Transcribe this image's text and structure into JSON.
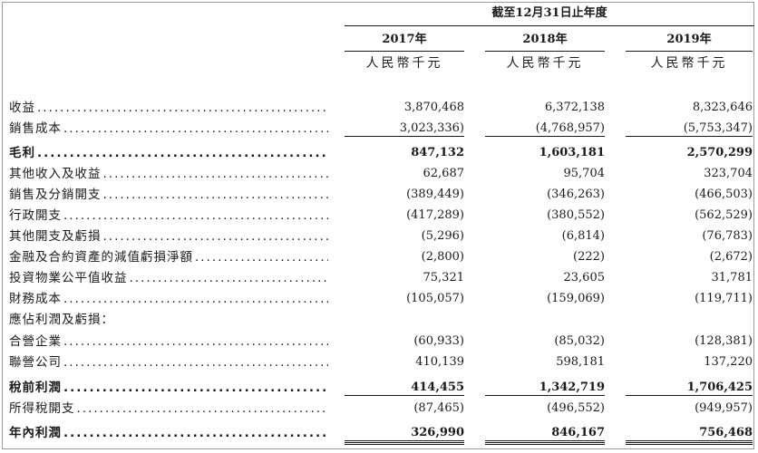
{
  "header": {
    "period": "截至12月31日止年度",
    "years": [
      "2017年",
      "2018年",
      "2019年"
    ],
    "unit": "人民幣千元"
  },
  "rows": [
    {
      "label": "收益",
      "values": [
        "3,870,468",
        "6,372,138",
        "8,323,646"
      ],
      "bold": false
    },
    {
      "label": "銷售成本",
      "values": [
        "3,023,336)",
        "(4,768,957)",
        "(5,753,347)"
      ],
      "bold": false
    },
    {
      "label": "毛利",
      "values": [
        "847,132",
        "1,603,181",
        "2,570,299"
      ],
      "bold": true
    },
    {
      "label": "其他收入及收益",
      "values": [
        "62,687",
        "95,704",
        "323,704"
      ],
      "bold": false
    },
    {
      "label": "銷售及分銷開支",
      "values": [
        "(389,449)",
        "(346,263)",
        "(466,503)"
      ],
      "bold": false
    },
    {
      "label": "行政開支",
      "values": [
        "(417,289)",
        "(380,552)",
        "(562,529)"
      ],
      "bold": false
    },
    {
      "label": "其他開支及虧損",
      "values": [
        "(5,296)",
        "(6,814)",
        "(76,783)"
      ],
      "bold": false
    },
    {
      "label": "金融及合約資產的減值虧損淨額",
      "values": [
        "(2,800)",
        "(222)",
        "(2,672)"
      ],
      "bold": false
    },
    {
      "label": "投資物業公平值收益",
      "values": [
        "75,321",
        "23,605",
        "31,781"
      ],
      "bold": false
    },
    {
      "label": "財務成本",
      "values": [
        "(105,057)",
        "(159,069)",
        "(119,711)"
      ],
      "bold": false
    },
    {
      "label": "應佔利潤及虧損：",
      "values": [
        "",
        "",
        ""
      ],
      "bold": false
    },
    {
      "label": "合營企業",
      "values": [
        "(60,933)",
        "(85,032)",
        "(128,381)"
      ],
      "bold": false
    },
    {
      "label": "聯營公司",
      "values": [
        "410,139",
        "598,181",
        "137,220"
      ],
      "bold": false
    },
    {
      "label": "稅前利潤",
      "values": [
        "414,455",
        "1,342,719",
        "1,706,425"
      ],
      "bold": true
    },
    {
      "label": "所得稅開支",
      "values": [
        "(87,465)",
        "(496,552)",
        "(949,957)"
      ],
      "bold": false
    },
    {
      "label": "年內利潤",
      "values": [
        "326,990",
        "846,167",
        "756,468"
      ],
      "bold": true
    }
  ]
}
